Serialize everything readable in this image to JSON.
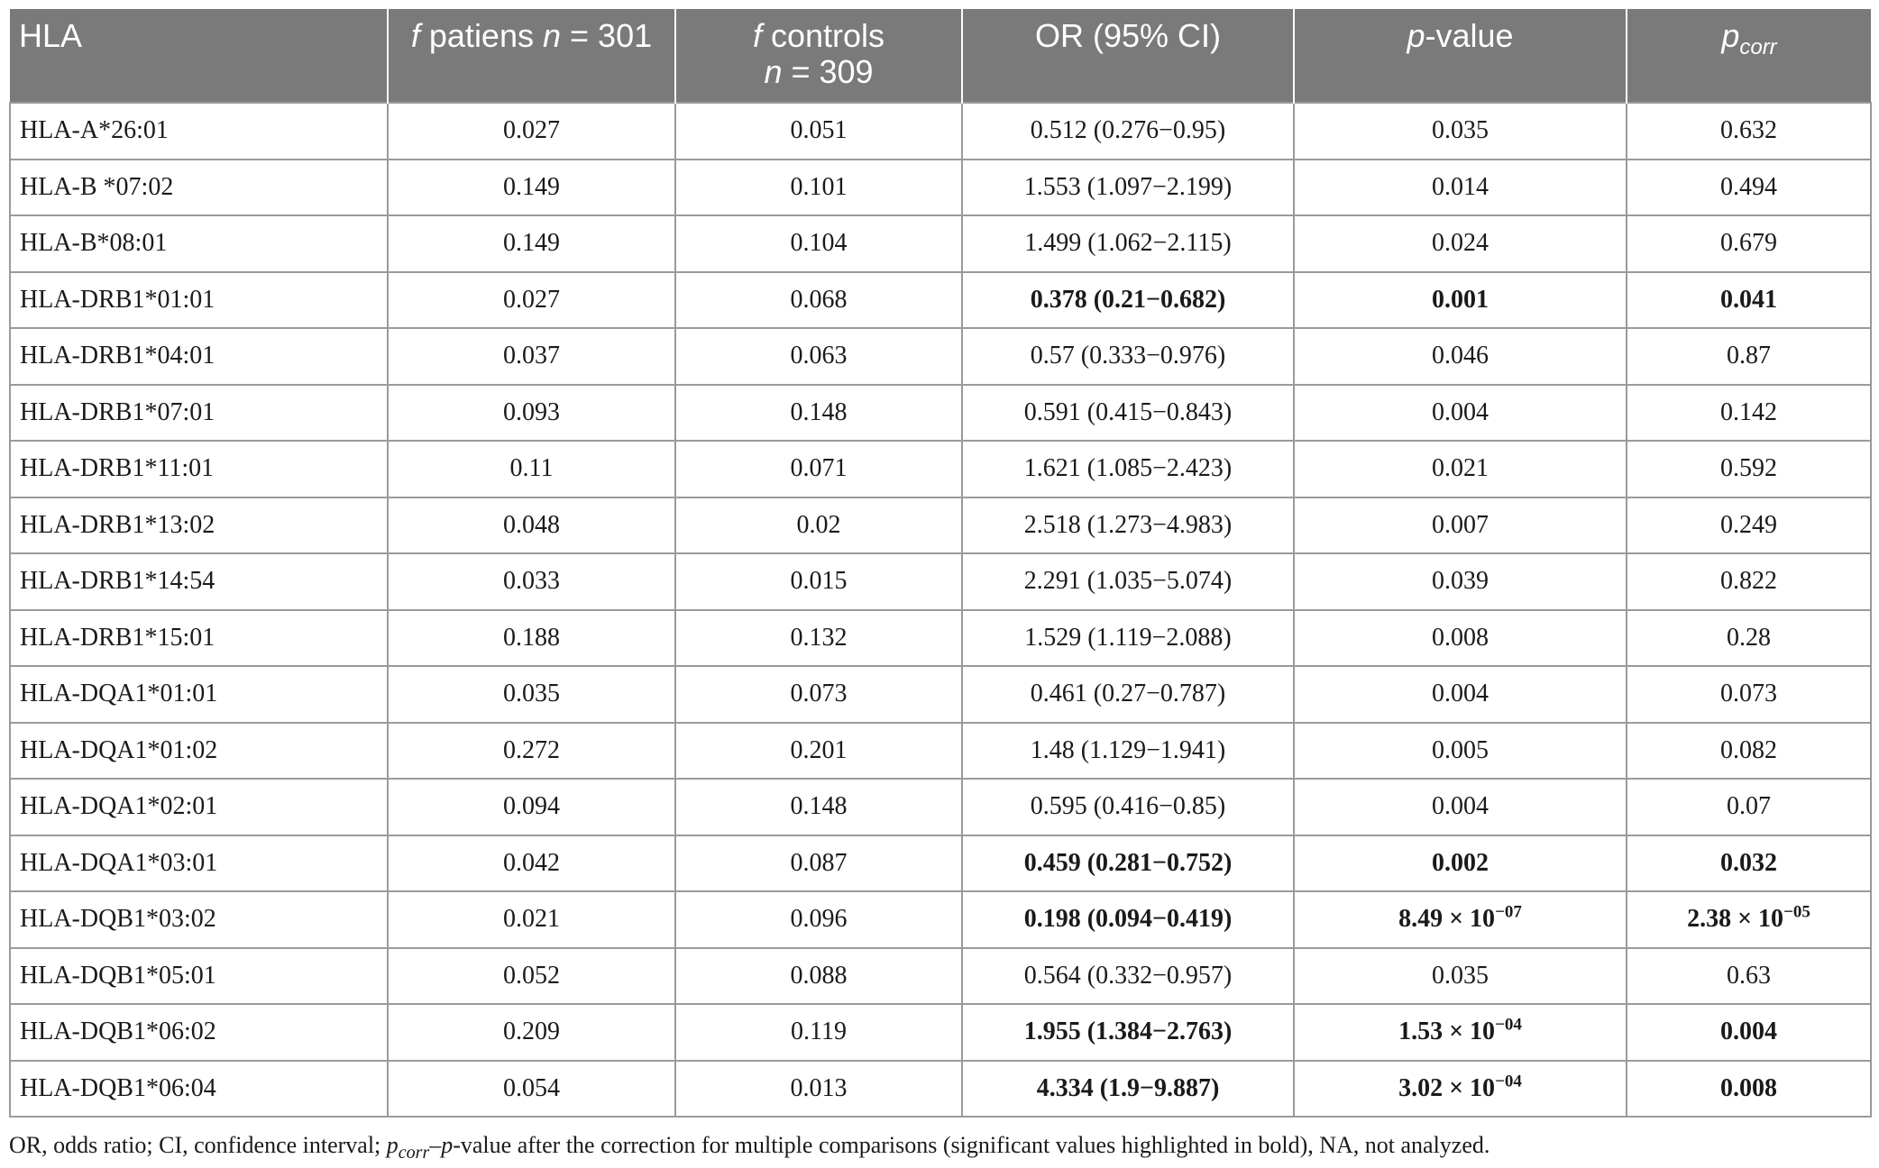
{
  "header": {
    "col0": "HLA",
    "col1_prefix": "f",
    "col1_mid": " patiens ",
    "col1_n": "n",
    "col1_suffix": " = 301",
    "col2_prefix": "f",
    "col2_mid": " controls",
    "col2_n": "n",
    "col2_suffix": " = 309",
    "col3": "OR (95% CI)",
    "col4_p": "p",
    "col4_suffix": "-value",
    "col5_p": "p",
    "col5_sub": "corr"
  },
  "rows": [
    {
      "hla": "HLA-A*26:01",
      "fp": "0.027",
      "fc": "0.051",
      "or": "0.512 (0.276−0.95)",
      "p_base": "0.035",
      "p_exp": "",
      "pcorr_base": "0.632",
      "pcorr_exp": "",
      "bold": false
    },
    {
      "hla": "HLA-B *07:02",
      "fp": "0.149",
      "fc": "0.101",
      "or": "1.553 (1.097−2.199)",
      "p_base": "0.014",
      "p_exp": "",
      "pcorr_base": "0.494",
      "pcorr_exp": "",
      "bold": false
    },
    {
      "hla": "HLA-B*08:01",
      "fp": "0.149",
      "fc": "0.104",
      "or": "1.499 (1.062−2.115)",
      "p_base": "0.024",
      "p_exp": "",
      "pcorr_base": "0.679",
      "pcorr_exp": "",
      "bold": false
    },
    {
      "hla": "HLA-DRB1*01:01",
      "fp": "0.027",
      "fc": "0.068",
      "or": "0.378 (0.21−0.682)",
      "p_base": "0.001",
      "p_exp": "",
      "pcorr_base": "0.041",
      "pcorr_exp": "",
      "bold": true
    },
    {
      "hla": "HLA-DRB1*04:01",
      "fp": "0.037",
      "fc": "0.063",
      "or": "0.57 (0.333−0.976)",
      "p_base": "0.046",
      "p_exp": "",
      "pcorr_base": "0.87",
      "pcorr_exp": "",
      "bold": false
    },
    {
      "hla": "HLA-DRB1*07:01",
      "fp": "0.093",
      "fc": "0.148",
      "or": "0.591 (0.415−0.843)",
      "p_base": "0.004",
      "p_exp": "",
      "pcorr_base": "0.142",
      "pcorr_exp": "",
      "bold": false
    },
    {
      "hla": "HLA-DRB1*11:01",
      "fp": "0.11",
      "fc": "0.071",
      "or": "1.621 (1.085−2.423)",
      "p_base": "0.021",
      "p_exp": "",
      "pcorr_base": "0.592",
      "pcorr_exp": "",
      "bold": false
    },
    {
      "hla": "HLA-DRB1*13:02",
      "fp": "0.048",
      "fc": "0.02",
      "or": "2.518 (1.273−4.983)",
      "p_base": "0.007",
      "p_exp": "",
      "pcorr_base": "0.249",
      "pcorr_exp": "",
      "bold": false
    },
    {
      "hla": "HLA-DRB1*14:54",
      "fp": "0.033",
      "fc": "0.015",
      "or": "2.291 (1.035−5.074)",
      "p_base": "0.039",
      "p_exp": "",
      "pcorr_base": "0.822",
      "pcorr_exp": "",
      "bold": false
    },
    {
      "hla": "HLA-DRB1*15:01",
      "fp": "0.188",
      "fc": "0.132",
      "or": "1.529 (1.119−2.088)",
      "p_base": "0.008",
      "p_exp": "",
      "pcorr_base": "0.28",
      "pcorr_exp": "",
      "bold": false
    },
    {
      "hla": "HLA-DQA1*01:01",
      "fp": "0.035",
      "fc": "0.073",
      "or": "0.461 (0.27−0.787)",
      "p_base": "0.004",
      "p_exp": "",
      "pcorr_base": "0.073",
      "pcorr_exp": "",
      "bold": false
    },
    {
      "hla": "HLA-DQA1*01:02",
      "fp": "0.272",
      "fc": "0.201",
      "or": "1.48 (1.129−1.941)",
      "p_base": "0.005",
      "p_exp": "",
      "pcorr_base": "0.082",
      "pcorr_exp": "",
      "bold": false
    },
    {
      "hla": "HLA-DQA1*02:01",
      "fp": "0.094",
      "fc": "0.148",
      "or": "0.595 (0.416−0.85)",
      "p_base": "0.004",
      "p_exp": "",
      "pcorr_base": "0.07",
      "pcorr_exp": "",
      "bold": false
    },
    {
      "hla": "HLA-DQA1*03:01",
      "fp": "0.042",
      "fc": "0.087",
      "or": "0.459 (0.281−0.752)",
      "p_base": "0.002",
      "p_exp": "",
      "pcorr_base": "0.032",
      "pcorr_exp": "",
      "bold": true
    },
    {
      "hla": "HLA-DQB1*03:02",
      "fp": "0.021",
      "fc": "0.096",
      "or": "0.198 (0.094−0.419)",
      "p_base": "8.49 × 10",
      "p_exp": "−07",
      "pcorr_base": "2.38 × 10",
      "pcorr_exp": "−05",
      "bold": true
    },
    {
      "hla": "HLA-DQB1*05:01",
      "fp": "0.052",
      "fc": "0.088",
      "or": "0.564 (0.332−0.957)",
      "p_base": "0.035",
      "p_exp": "",
      "pcorr_base": "0.63",
      "pcorr_exp": "",
      "bold": false
    },
    {
      "hla": "HLA-DQB1*06:02",
      "fp": "0.209",
      "fc": "0.119",
      "or": "1.955 (1.384−2.763)",
      "p_base": "1.53 × 10",
      "p_exp": "−04",
      "pcorr_base": "0.004",
      "pcorr_exp": "",
      "bold": true
    },
    {
      "hla": "HLA-DQB1*06:04",
      "fp": "0.054",
      "fc": "0.013",
      "or": "4.334 (1.9−9.887)",
      "p_base": "3.02 × 10",
      "p_exp": "−04",
      "pcorr_base": "0.008",
      "pcorr_exp": "",
      "bold": true
    }
  ],
  "footnote": {
    "part1": "OR, odds ratio; CI, confidence interval; ",
    "p": "p",
    "sub": "corr",
    "part2": "–",
    "p2": "p",
    "part3": "-value after the correction for multiple comparisons (significant values highlighted in bold), NA, not analyzed."
  }
}
